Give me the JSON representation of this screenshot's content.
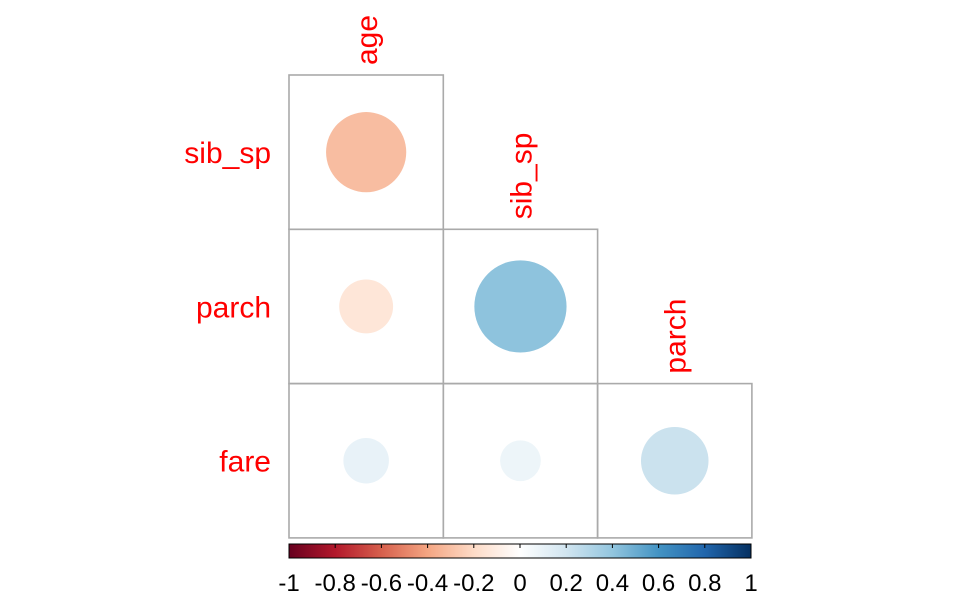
{
  "chart_data": {
    "type": "heatmap",
    "subtype": "correlation-plot-circles-lower-triangle",
    "columns": [
      "age",
      "sib_sp",
      "parch"
    ],
    "rows": [
      "sib_sp",
      "parch",
      "fare"
    ],
    "cells": [
      {
        "row": "sib_sp",
        "col": "age",
        "value": -0.31
      },
      {
        "row": "parch",
        "col": "age",
        "value": -0.14
      },
      {
        "row": "parch",
        "col": "sib_sp",
        "value": 0.41
      },
      {
        "row": "fare",
        "col": "age",
        "value": 0.1
      },
      {
        "row": "fare",
        "col": "sib_sp",
        "value": 0.08
      },
      {
        "row": "fare",
        "col": "parch",
        "value": 0.22
      }
    ],
    "colorbar": {
      "range": [
        -1,
        1
      ],
      "ticks": [
        "-1",
        "-0.8",
        "-0.6",
        "-0.4",
        "-0.2",
        "0",
        "0.2",
        "0.4",
        "0.6",
        "0.8",
        "1"
      ],
      "palette": [
        "#67001F",
        "#B2182B",
        "#D6604D",
        "#F4A582",
        "#FDDBC7",
        "#FFFFFF",
        "#D1E5F0",
        "#92C5DE",
        "#4393C3",
        "#2166AC",
        "#053061"
      ],
      "placement": "bottom"
    },
    "label_color": "#FF0000",
    "grid_color": "#AAAAAA"
  }
}
